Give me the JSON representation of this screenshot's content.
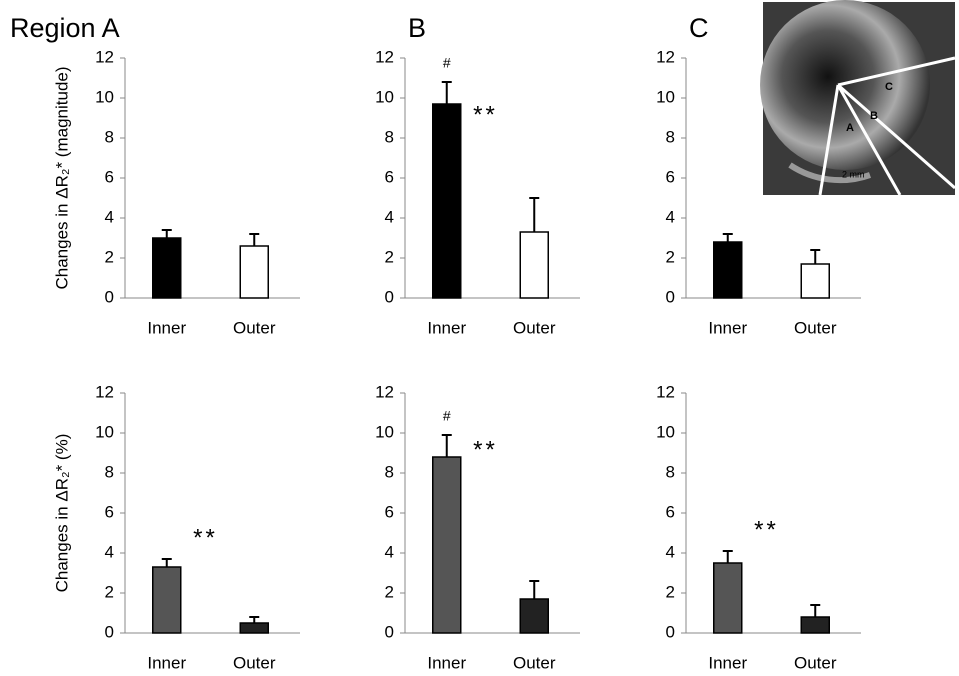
{
  "chart_data": [
    {
      "type": "bar",
      "title": "Region  A",
      "y_label": "Changes in ΔR₂* (magnitude)",
      "categories": [
        "Inner",
        "Outer"
      ],
      "values": [
        3.0,
        2.6
      ],
      "errors": [
        0.4,
        0.6
      ],
      "colors": [
        "#000000",
        "#ffffff"
      ],
      "ylim": [
        0,
        12
      ],
      "yticks": [
        0,
        2,
        4,
        6,
        8,
        10,
        12
      ],
      "annotations": []
    },
    {
      "type": "bar",
      "title": "B",
      "categories": [
        "Inner",
        "Outer"
      ],
      "values": [
        9.7,
        3.3
      ],
      "errors": [
        1.1,
        1.7
      ],
      "colors": [
        "#000000",
        "#ffffff"
      ],
      "ylim": [
        0,
        12
      ],
      "yticks": [
        0,
        2,
        4,
        6,
        8,
        10,
        12
      ],
      "annotations": [
        "#",
        "**"
      ]
    },
    {
      "type": "bar",
      "title": "C",
      "categories": [
        "Inner",
        "Outer"
      ],
      "values": [
        2.8,
        1.7
      ],
      "errors": [
        0.4,
        0.7
      ],
      "colors": [
        "#000000",
        "#ffffff"
      ],
      "ylim": [
        0,
        12
      ],
      "yticks": [
        0,
        2,
        4,
        6,
        8,
        10,
        12
      ],
      "annotations": []
    },
    {
      "type": "bar",
      "y_label": "Changes in ΔR₂* (%)",
      "categories": [
        "Inner",
        "Outer"
      ],
      "values": [
        3.3,
        0.5
      ],
      "errors": [
        0.4,
        0.3
      ],
      "colors": [
        "#555555",
        "#222222"
      ],
      "ylim": [
        0,
        12
      ],
      "yticks": [
        0,
        2,
        4,
        6,
        8,
        10,
        12
      ],
      "annotations": [
        "**"
      ]
    },
    {
      "type": "bar",
      "categories": [
        "Inner",
        "Outer"
      ],
      "values": [
        8.8,
        1.7
      ],
      "errors": [
        1.1,
        0.9
      ],
      "colors": [
        "#555555",
        "#222222"
      ],
      "ylim": [
        0,
        12
      ],
      "yticks": [
        0,
        2,
        4,
        6,
        8,
        10,
        12
      ],
      "annotations": [
        "#",
        "**"
      ]
    },
    {
      "type": "bar",
      "categories": [
        "Inner",
        "Outer"
      ],
      "values": [
        3.5,
        0.8
      ],
      "errors": [
        0.6,
        0.6
      ],
      "colors": [
        "#555555",
        "#222222"
      ],
      "ylim": [
        0,
        12
      ],
      "yticks": [
        0,
        2,
        4,
        6,
        8,
        10,
        12
      ],
      "annotations": [
        "**"
      ]
    }
  ],
  "inset": {
    "labels": [
      "A",
      "B",
      "C"
    ],
    "scale_bar": "2 mm"
  }
}
